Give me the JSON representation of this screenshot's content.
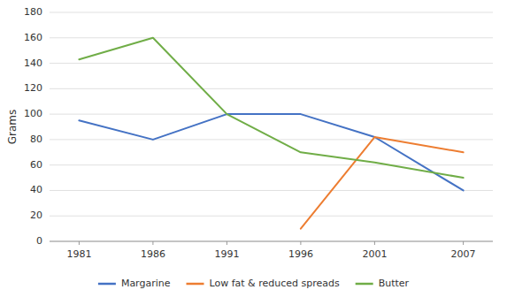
{
  "chart_data": {
    "type": "line",
    "x": [
      1981,
      1986,
      1991,
      1996,
      2001,
      2007
    ],
    "xlim": [
      1979,
      2009
    ],
    "xticks": [
      1981,
      1986,
      1991,
      1996,
      2001,
      2007
    ],
    "ylabel": "Grams",
    "ylim": [
      0,
      180
    ],
    "yticks": [
      0,
      20,
      40,
      60,
      80,
      100,
      120,
      140,
      160,
      180
    ],
    "grid": true,
    "legend": "bottom",
    "series": [
      {
        "name": "Margarine",
        "color": "#4472C4",
        "values": [
          95,
          80,
          100,
          100,
          82,
          40
        ]
      },
      {
        "name": "Low fat & reduced spreads",
        "color": "#ED7D31",
        "values": [
          null,
          null,
          null,
          10,
          82,
          70
        ]
      },
      {
        "name": "Butter",
        "color": "#70AD47",
        "values": [
          143,
          160,
          100,
          70,
          62,
          50
        ]
      }
    ]
  }
}
